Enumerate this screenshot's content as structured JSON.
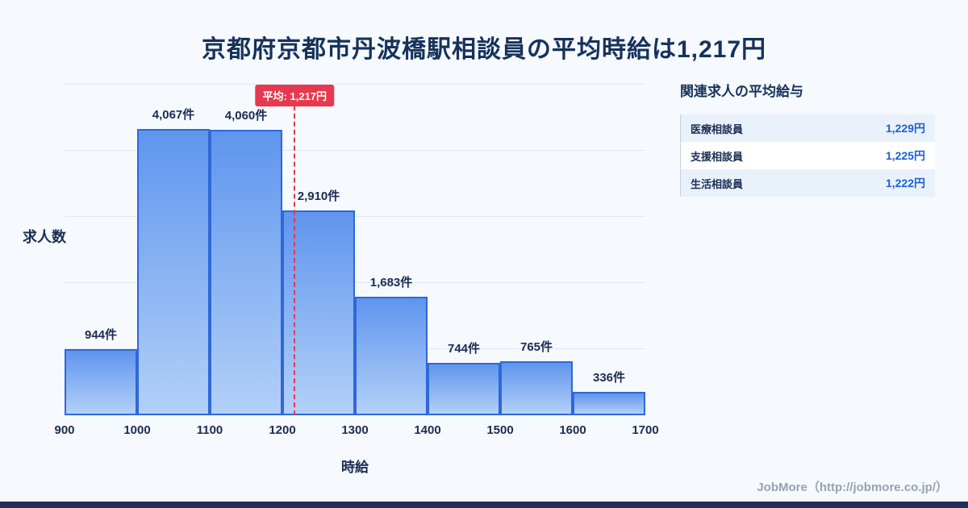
{
  "title": "京都府京都市丹波橋駅相談員の平均時給は1,217円",
  "chart_data": {
    "type": "bar",
    "subtype": "histogram",
    "categories": [
      "900-1000",
      "1000-1100",
      "1100-1200",
      "1200-1300",
      "1300-1400",
      "1400-1500",
      "1500-1600",
      "1600-1700"
    ],
    "values": [
      944,
      4067,
      4060,
      2910,
      1683,
      744,
      765,
      336
    ],
    "bar_labels": [
      "944件",
      "4,067件",
      "4,060件",
      "2,910件",
      "1,683件",
      "744件",
      "765件",
      "336件"
    ],
    "x_ticks": [
      "900",
      "1000",
      "1100",
      "1200",
      "1300",
      "1400",
      "1500",
      "1600",
      "1700"
    ],
    "xlim": [
      900,
      1700
    ],
    "ylim": [
      0,
      4700
    ],
    "xlabel": "時給",
    "ylabel": "求人数",
    "grid": "horizontal",
    "average": {
      "value": 1217,
      "label": "平均: 1,217円"
    }
  },
  "panel": {
    "heading": "関連求人の平均給与",
    "rows": [
      {
        "label": "医療相談員",
        "value": "1,229円"
      },
      {
        "label": "支援相談員",
        "value": "1,225円"
      },
      {
        "label": "生活相談員",
        "value": "1,222円"
      }
    ]
  },
  "footer": {
    "credit": "JobMore（http://jobmore.co.jp/）"
  },
  "colors": {
    "background": "#f6f9fd",
    "title_navy": "#16325c",
    "bar_fill_top": "#5f95ee",
    "bar_fill_bottom": "#b3d0f8",
    "bar_border": "#2e68d8",
    "average_red": "#e63950",
    "value_blue": "#1d5fd6",
    "footer_bar_navy": "#1f2f5c"
  }
}
